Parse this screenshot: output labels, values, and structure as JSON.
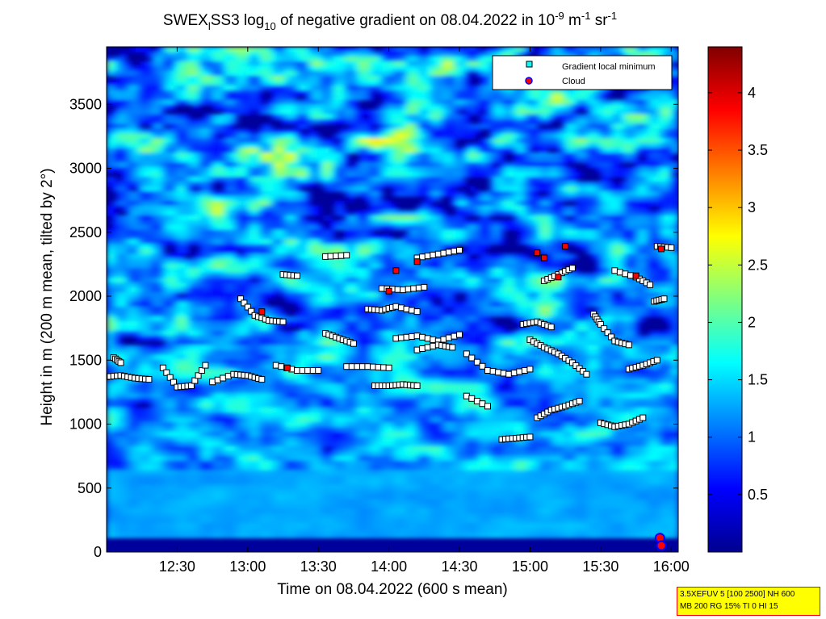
{
  "chart_data": {
    "type": "heatmap",
    "title": {
      "prefix": "SWEX",
      "sub1": "l",
      "mid1": "SS3 log",
      "sub2": "10",
      "mid2": " of negative gradient on 08.04.2022 in 10",
      "sup1": "-9",
      "mid3": " m",
      "sup2": "-1",
      "mid4": " sr",
      "sup3": "-1"
    },
    "xlabel": "Time on 08.04.2022 (600 s mean)",
    "ylabel": "Height in m (200 m mean, tilted by 2°)",
    "x_range_hours": [
      12.0,
      16.05
    ],
    "y_range": [
      0,
      3950
    ],
    "x_ticks": [
      {
        "value": 12.5,
        "label": "12:30"
      },
      {
        "value": 13.0,
        "label": "13:00"
      },
      {
        "value": 13.5,
        "label": "13:30"
      },
      {
        "value": 14.0,
        "label": "14:00"
      },
      {
        "value": 14.5,
        "label": "14:30"
      },
      {
        "value": 15.0,
        "label": "15:00"
      },
      {
        "value": 15.5,
        "label": "15:30"
      },
      {
        "value": 16.0,
        "label": "16:00"
      }
    ],
    "y_ticks": [
      {
        "value": 0,
        "label": "0"
      },
      {
        "value": 500,
        "label": "500"
      },
      {
        "value": 1000,
        "label": "1000"
      },
      {
        "value": 1500,
        "label": "1500"
      },
      {
        "value": 2000,
        "label": "2000"
      },
      {
        "value": 2500,
        "label": "2500"
      },
      {
        "value": 3000,
        "label": "3000"
      },
      {
        "value": 3500,
        "label": "3500"
      }
    ],
    "colorbar": {
      "range": [
        0,
        4.4
      ],
      "colormap": "jet",
      "ticks": [
        {
          "value": 0.5,
          "label": "0.5"
        },
        {
          "value": 1,
          "label": "1"
        },
        {
          "value": 1.5,
          "label": "1.5"
        },
        {
          "value": 2,
          "label": "2"
        },
        {
          "value": 2.5,
          "label": "2.5"
        },
        {
          "value": 3,
          "label": "3"
        },
        {
          "value": 3.5,
          "label": "3.5"
        },
        {
          "value": 4,
          "label": "4"
        }
      ]
    },
    "legend": {
      "position": "top-right",
      "entries": [
        {
          "label": "Gradient local minimum",
          "marker": "square",
          "color": "#00ffff"
        },
        {
          "label": "Cloud",
          "marker": "circle",
          "color": "#ff0000",
          "edge": "#0000ff"
        }
      ]
    },
    "gradient_minimum_tracks": [
      {
        "t": [
          12.0,
          12.1,
          12.2,
          12.3
        ],
        "h": [
          1370,
          1380,
          1360,
          1350
        ]
      },
      {
        "t": [
          12.05,
          12.1
        ],
        "h": [
          1520,
          1480
        ]
      },
      {
        "t": [
          12.4,
          12.5,
          12.6,
          12.7
        ],
        "h": [
          1440,
          1290,
          1300,
          1460
        ]
      },
      {
        "t": [
          12.75,
          12.9,
          13.0,
          13.1
        ],
        "h": [
          1330,
          1390,
          1380,
          1350
        ]
      },
      {
        "t": [
          12.95,
          13.05,
          13.15,
          13.25
        ],
        "h": [
          1980,
          1850,
          1810,
          1800
        ]
      },
      {
        "t": [
          13.2,
          13.35,
          13.5
        ],
        "h": [
          1460,
          1420,
          1420
        ]
      },
      {
        "t": [
          13.25,
          13.35
        ],
        "h": [
          2170,
          2160
        ]
      },
      {
        "t": [
          13.55,
          13.7
        ],
        "h": [
          2310,
          2320
        ]
      },
      {
        "t": [
          13.55,
          13.65,
          13.75
        ],
        "h": [
          1710,
          1670,
          1630
        ]
      },
      {
        "t": [
          13.7,
          13.85,
          14.0
        ],
        "h": [
          1450,
          1450,
          1440
        ]
      },
      {
        "t": [
          13.85,
          13.95,
          14.05,
          14.2
        ],
        "h": [
          1900,
          1890,
          1920,
          1880
        ]
      },
      {
        "t": [
          13.9,
          14.0,
          14.1,
          14.2
        ],
        "h": [
          1300,
          1300,
          1310,
          1300
        ]
      },
      {
        "t": [
          13.95,
          14.1,
          14.25
        ],
        "h": [
          2060,
          2050,
          2070
        ]
      },
      {
        "t": [
          14.05,
          14.2,
          14.35,
          14.5
        ],
        "h": [
          1670,
          1690,
          1650,
          1700
        ]
      },
      {
        "t": [
          14.2,
          14.35,
          14.5
        ],
        "h": [
          2300,
          2330,
          2360
        ]
      },
      {
        "t": [
          14.2,
          14.35,
          14.45
        ],
        "h": [
          1580,
          1620,
          1600
        ]
      },
      {
        "t": [
          14.55,
          14.7,
          14.85,
          15.0
        ],
        "h": [
          1550,
          1420,
          1390,
          1430
        ]
      },
      {
        "t": [
          14.55,
          14.7
        ],
        "h": [
          1220,
          1140
        ]
      },
      {
        "t": [
          14.8,
          14.9,
          15.0
        ],
        "h": [
          880,
          890,
          900
        ]
      },
      {
        "t": [
          14.95,
          15.05,
          15.15
        ],
        "h": [
          1780,
          1800,
          1760
        ]
      },
      {
        "t": [
          15.0,
          15.1,
          15.2,
          15.3,
          15.4
        ],
        "h": [
          1660,
          1600,
          1550,
          1480,
          1390
        ]
      },
      {
        "t": [
          15.05,
          15.15,
          15.25,
          15.35
        ],
        "h": [
          1050,
          1110,
          1140,
          1180
        ]
      },
      {
        "t": [
          15.1,
          15.2,
          15.3
        ],
        "h": [
          2120,
          2170,
          2220
        ]
      },
      {
        "t": [
          15.45,
          15.5,
          15.6,
          15.7
        ],
        "h": [
          1860,
          1780,
          1650,
          1620
        ]
      },
      {
        "t": [
          15.5,
          15.6,
          15.7,
          15.8
        ],
        "h": [
          1010,
          980,
          1000,
          1050
        ]
      },
      {
        "t": [
          15.6,
          15.75,
          15.85
        ],
        "h": [
          2200,
          2150,
          2090
        ]
      },
      {
        "t": [
          15.7,
          15.8,
          15.9
        ],
        "h": [
          1430,
          1460,
          1500
        ]
      },
      {
        "t": [
          15.88,
          15.95
        ],
        "h": [
          1960,
          1980
        ]
      },
      {
        "t": [
          15.9,
          16.0
        ],
        "h": [
          2390,
          2380
        ]
      }
    ],
    "cloud_points": [
      {
        "t": 13.1,
        "h": 1880
      },
      {
        "t": 13.28,
        "h": 1440
      },
      {
        "t": 14.0,
        "h": 2040
      },
      {
        "t": 14.05,
        "h": 2200
      },
      {
        "t": 14.2,
        "h": 2270
      },
      {
        "t": 15.05,
        "h": 2340
      },
      {
        "t": 15.1,
        "h": 2300
      },
      {
        "t": 15.2,
        "h": 2150
      },
      {
        "t": 15.25,
        "h": 2390
      },
      {
        "t": 15.75,
        "h": 2160
      },
      {
        "t": 15.93,
        "h": 2370
      },
      {
        "t": 15.92,
        "h": 110
      },
      {
        "t": 15.93,
        "h": 50
      }
    ]
  },
  "info_box": {
    "line1": "3.5XEFUV 5 [100 2500] NH 600",
    "line2": "MB 200 RG 15% TI 0 HI 15"
  }
}
